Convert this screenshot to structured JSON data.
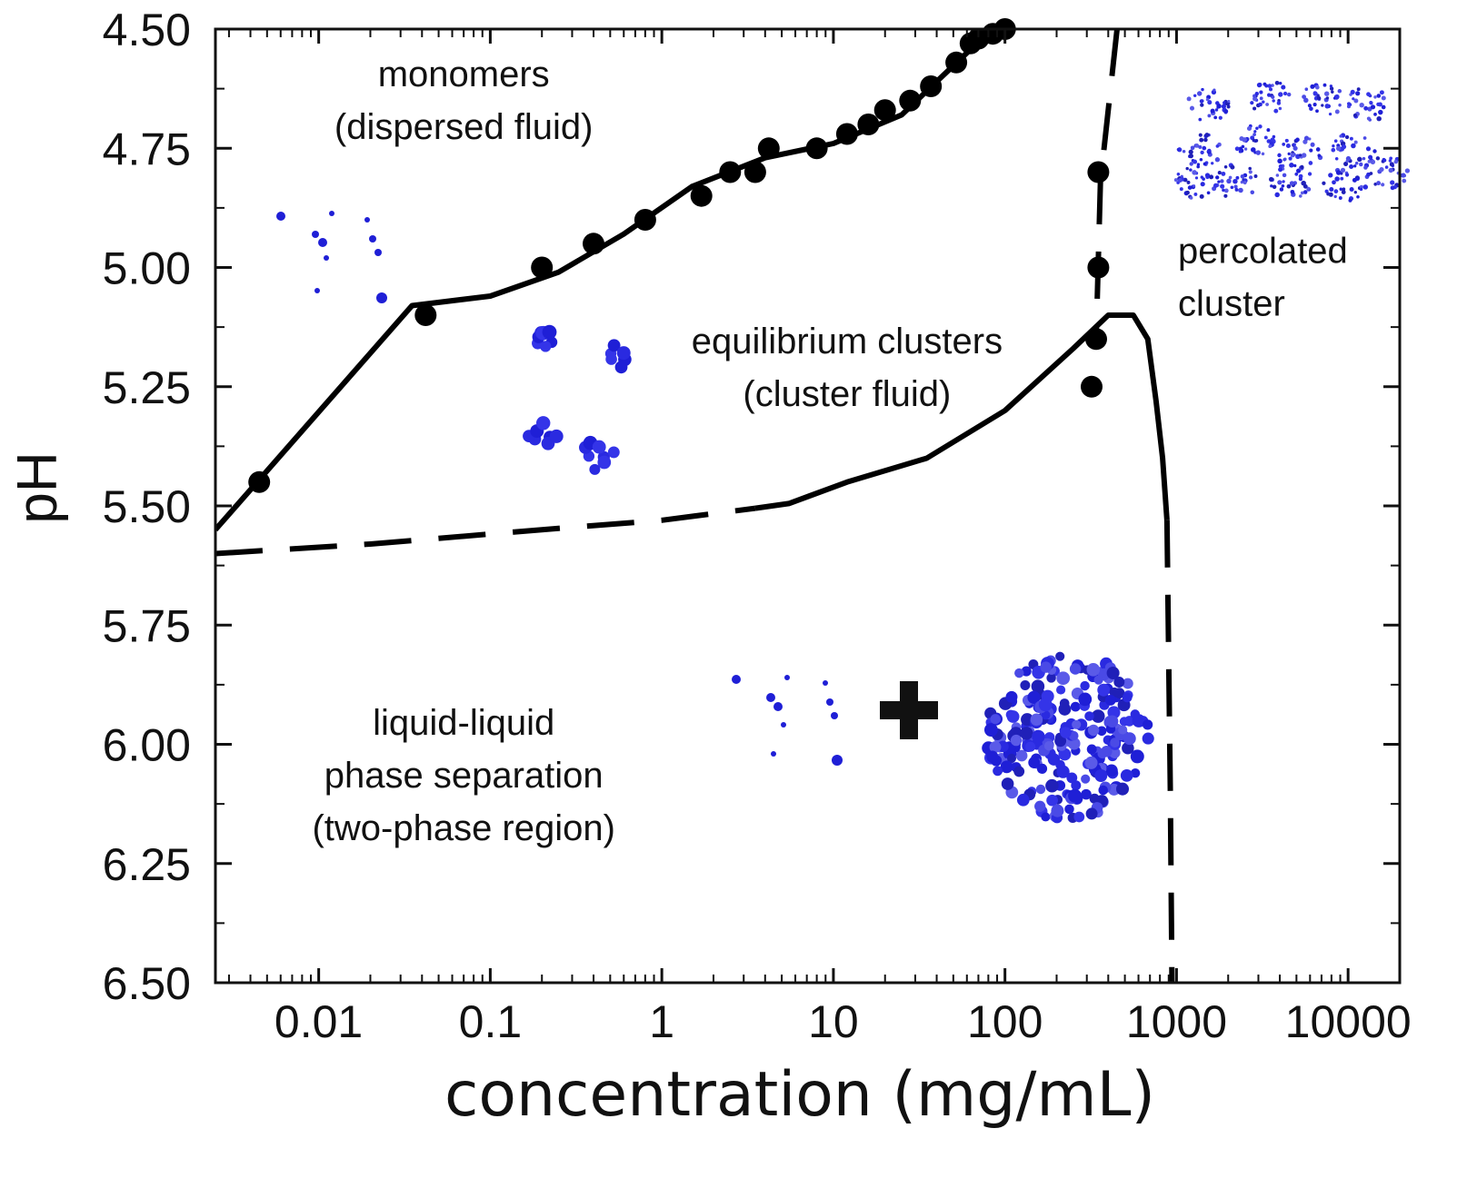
{
  "chart_data": {
    "type": "scatter",
    "title": "",
    "xlabel": "concentration (mg/mL)",
    "ylabel": "pH",
    "x_scale": "log",
    "xlim": [
      0.0025,
      20000
    ],
    "ylim": [
      6.5,
      4.5
    ],
    "y_inverted": true,
    "grid": false,
    "x_ticks": [
      0.01,
      0.1,
      1,
      10,
      100,
      1000,
      10000
    ],
    "x_tick_labels": [
      "0.01",
      "0.1",
      "1",
      "10",
      "100",
      "1000",
      "10000"
    ],
    "y_ticks": [
      4.5,
      4.75,
      5.0,
      5.25,
      5.5,
      5.75,
      6.0,
      6.25,
      6.5
    ],
    "y_tick_labels": [
      "4.50",
      "4.75",
      "5.00",
      "5.25",
      "5.50",
      "5.75",
      "6.00",
      "6.25",
      "6.50"
    ],
    "series": [
      {
        "kind": "points",
        "color": "#000000",
        "points": [
          {
            "x": 0.0045,
            "y": 5.45
          },
          {
            "x": 0.042,
            "y": 5.1
          },
          {
            "x": 0.2,
            "y": 5.0
          },
          {
            "x": 0.4,
            "y": 4.95
          },
          {
            "x": 0.8,
            "y": 4.9
          },
          {
            "x": 1.7,
            "y": 4.85
          },
          {
            "x": 2.5,
            "y": 4.8
          },
          {
            "x": 3.5,
            "y": 4.8
          },
          {
            "x": 4.2,
            "y": 4.75
          },
          {
            "x": 8,
            "y": 4.75
          },
          {
            "x": 12,
            "y": 4.72
          },
          {
            "x": 16,
            "y": 4.7
          },
          {
            "x": 20,
            "y": 4.67
          },
          {
            "x": 28,
            "y": 4.65
          },
          {
            "x": 37,
            "y": 4.62
          },
          {
            "x": 52,
            "y": 4.57
          },
          {
            "x": 63,
            "y": 4.53
          },
          {
            "x": 70,
            "y": 4.52
          },
          {
            "x": 85,
            "y": 4.51
          },
          {
            "x": 100,
            "y": 4.5
          },
          {
            "x": 350,
            "y": 4.8
          },
          {
            "x": 350,
            "y": 5.0
          },
          {
            "x": 340,
            "y": 5.15
          },
          {
            "x": 320,
            "y": 5.25
          }
        ]
      },
      {
        "kind": "line",
        "style": "solid",
        "color": "#000000",
        "points": [
          {
            "x": 0.0025,
            "y": 5.55
          },
          {
            "x": 0.035,
            "y": 5.08
          },
          {
            "x": 0.1,
            "y": 5.06
          },
          {
            "x": 0.25,
            "y": 5.01
          },
          {
            "x": 0.6,
            "y": 4.93
          },
          {
            "x": 1.5,
            "y": 4.83
          },
          {
            "x": 4,
            "y": 4.77
          },
          {
            "x": 10,
            "y": 4.74
          },
          {
            "x": 25,
            "y": 4.68
          },
          {
            "x": 60,
            "y": 4.55
          },
          {
            "x": 120,
            "y": 4.45
          }
        ]
      },
      {
        "kind": "line",
        "style": "dashed",
        "color": "#000000",
        "points": [
          {
            "x": 0.0025,
            "y": 5.6
          },
          {
            "x": 0.02,
            "y": 5.58
          },
          {
            "x": 0.2,
            "y": 5.55
          },
          {
            "x": 1,
            "y": 5.53
          },
          {
            "x": 3.5,
            "y": 5.505
          }
        ]
      },
      {
        "kind": "line",
        "style": "solid",
        "color": "#000000",
        "points": [
          {
            "x": 3.5,
            "y": 5.505
          },
          {
            "x": 5.5,
            "y": 5.495
          },
          {
            "x": 12,
            "y": 5.45
          },
          {
            "x": 35,
            "y": 5.4
          },
          {
            "x": 100,
            "y": 5.3
          },
          {
            "x": 250,
            "y": 5.17
          },
          {
            "x": 400,
            "y": 5.1
          },
          {
            "x": 560,
            "y": 5.1
          },
          {
            "x": 680,
            "y": 5.15
          },
          {
            "x": 760,
            "y": 5.28
          },
          {
            "x": 830,
            "y": 5.4
          },
          {
            "x": 880,
            "y": 5.53
          }
        ]
      },
      {
        "kind": "line",
        "style": "dashed",
        "color": "#000000",
        "points": [
          {
            "x": 880,
            "y": 5.53
          },
          {
            "x": 920,
            "y": 6.1
          },
          {
            "x": 940,
            "y": 6.5
          }
        ]
      },
      {
        "kind": "line",
        "style": "dashed",
        "color": "#000000",
        "points": [
          {
            "x": 450,
            "y": 4.5
          },
          {
            "x": 360,
            "y": 4.82
          },
          {
            "x": 340,
            "y": 5.15
          }
        ]
      }
    ],
    "annotations": [
      {
        "lines": [
          "monomers",
          "(dispersed fluid)"
        ],
        "x": 0.07,
        "y": 4.62
      },
      {
        "lines": [
          "equilibrium clusters",
          "(cluster fluid)"
        ],
        "x": 12,
        "y": 5.18
      },
      {
        "lines": [
          "percolated",
          "cluster"
        ],
        "x": 2600,
        "y": 4.99
      },
      {
        "lines": [
          "liquid-liquid",
          "phase separation",
          "(two-phase region)"
        ],
        "x": 0.07,
        "y": 5.98
      }
    ]
  }
}
